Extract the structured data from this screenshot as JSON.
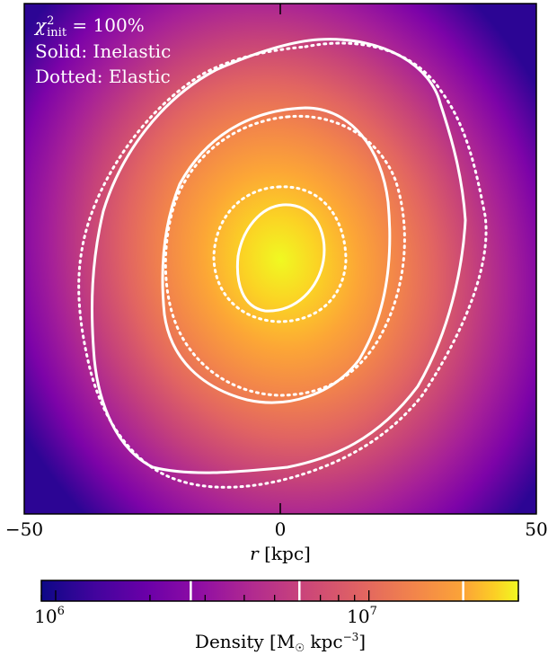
{
  "chart_data": {
    "type": "heatmap",
    "annotation": {
      "line1_symbol": "χ",
      "line1_sup": "2",
      "line1_sub": "init",
      "line1_value": " = 100%",
      "line2": "Solid: Inelastic",
      "line3": "Dotted: Elastic"
    },
    "xlabel_symbol": "r",
    "xlabel_unit": " [kpc]",
    "xlim": [
      -50,
      50
    ],
    "xticks": [
      -50,
      0,
      50
    ],
    "xtick_labels": [
      "−50",
      "0",
      "50"
    ],
    "colormap": "plasma",
    "colorbar": {
      "label": "Density [M",
      "label_sun": "☉",
      "label_unit": " kpc",
      "label_exp": "−3",
      "label_close": "]",
      "scale": "log",
      "range": [
        900000,
        30000000
      ],
      "major_tick_values": [
        1000000,
        10000000
      ],
      "major_tick_labels": [
        "10",
        "10"
      ],
      "major_tick_exps": [
        "6",
        "7"
      ],
      "contour_levels": [
        2700000,
        6000000,
        20000000
      ]
    },
    "series": [
      {
        "name": "Inelastic",
        "style": "solid"
      },
      {
        "name": "Elastic",
        "style": "dotted"
      }
    ]
  }
}
